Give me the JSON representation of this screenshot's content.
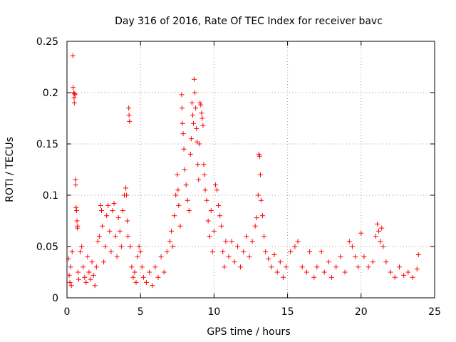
{
  "chart_data": {
    "type": "scatter",
    "title": "Day 316 of 2016, Rate Of TEC Index for receiver bavc",
    "xlabel": "GPS time / hours",
    "ylabel": "ROTI / TECUs",
    "xlim": [
      0,
      25
    ],
    "ylim": [
      0,
      0.25
    ],
    "xticks": [
      0,
      5,
      10,
      15,
      20,
      25
    ],
    "yticks": [
      0,
      0.05,
      0.1,
      0.15,
      0.2,
      0.25
    ],
    "xtick_labels": [
      "0",
      "5",
      "10",
      "15",
      "20",
      "25"
    ],
    "ytick_labels": [
      "0",
      "0.05",
      "0.1",
      "0.15",
      "0.2",
      "0.25"
    ],
    "grid": true,
    "marker": "+",
    "marker_color": "#ff0000",
    "series": [
      {
        "name": "ROTI",
        "points": [
          [
            0.1,
            0.038
          ],
          [
            0.15,
            0.022
          ],
          [
            0.2,
            0.015
          ],
          [
            0.25,
            0.03
          ],
          [
            0.3,
            0.012
          ],
          [
            0.35,
            0.045
          ],
          [
            0.4,
            0.236
          ],
          [
            0.42,
            0.205
          ],
          [
            0.45,
            0.2
          ],
          [
            0.48,
            0.195
          ],
          [
            0.5,
            0.19
          ],
          [
            0.52,
            0.199
          ],
          [
            0.55,
            0.198
          ],
          [
            0.58,
            0.115
          ],
          [
            0.6,
            0.11
          ],
          [
            0.62,
            0.088
          ],
          [
            0.65,
            0.085
          ],
          [
            0.68,
            0.075
          ],
          [
            0.7,
            0.068
          ],
          [
            0.72,
            0.07
          ],
          [
            0.75,
            0.025
          ],
          [
            0.8,
            0.018
          ],
          [
            0.9,
            0.045
          ],
          [
            1.0,
            0.05
          ],
          [
            1.1,
            0.03
          ],
          [
            1.2,
            0.02
          ],
          [
            1.3,
            0.015
          ],
          [
            1.4,
            0.04
          ],
          [
            1.5,
            0.025
          ],
          [
            1.6,
            0.018
          ],
          [
            1.7,
            0.035
          ],
          [
            1.8,
            0.022
          ],
          [
            1.9,
            0.012
          ],
          [
            2.0,
            0.03
          ],
          [
            2.1,
            0.055
          ],
          [
            2.2,
            0.06
          ],
          [
            2.3,
            0.09
          ],
          [
            2.35,
            0.085
          ],
          [
            2.4,
            0.07
          ],
          [
            2.5,
            0.035
          ],
          [
            2.6,
            0.05
          ],
          [
            2.7,
            0.08
          ],
          [
            2.8,
            0.09
          ],
          [
            2.9,
            0.065
          ],
          [
            3.0,
            0.045
          ],
          [
            3.1,
            0.085
          ],
          [
            3.2,
            0.092
          ],
          [
            3.3,
            0.06
          ],
          [
            3.4,
            0.04
          ],
          [
            3.5,
            0.078
          ],
          [
            3.6,
            0.065
          ],
          [
            3.7,
            0.05
          ],
          [
            3.8,
            0.085
          ],
          [
            3.9,
            0.1
          ],
          [
            4.0,
            0.107
          ],
          [
            4.05,
            0.1
          ],
          [
            4.1,
            0.075
          ],
          [
            4.15,
            0.06
          ],
          [
            4.2,
            0.185
          ],
          [
            4.22,
            0.178
          ],
          [
            4.25,
            0.172
          ],
          [
            4.3,
            0.05
          ],
          [
            4.4,
            0.03
          ],
          [
            4.5,
            0.02
          ],
          [
            4.6,
            0.025
          ],
          [
            4.7,
            0.015
          ],
          [
            4.8,
            0.04
          ],
          [
            4.9,
            0.05
          ],
          [
            5.0,
            0.045
          ],
          [
            5.1,
            0.03
          ],
          [
            5.2,
            0.02
          ],
          [
            5.4,
            0.015
          ],
          [
            5.6,
            0.025
          ],
          [
            5.8,
            0.012
          ],
          [
            6.0,
            0.03
          ],
          [
            6.2,
            0.02
          ],
          [
            6.4,
            0.04
          ],
          [
            6.6,
            0.025
          ],
          [
            6.8,
            0.045
          ],
          [
            7.0,
            0.055
          ],
          [
            7.1,
            0.065
          ],
          [
            7.2,
            0.05
          ],
          [
            7.3,
            0.08
          ],
          [
            7.4,
            0.1
          ],
          [
            7.5,
            0.12
          ],
          [
            7.55,
            0.105
          ],
          [
            7.6,
            0.09
          ],
          [
            7.7,
            0.07
          ],
          [
            7.8,
            0.198
          ],
          [
            7.82,
            0.185
          ],
          [
            7.85,
            0.17
          ],
          [
            7.9,
            0.16
          ],
          [
            7.95,
            0.145
          ],
          [
            8.0,
            0.125
          ],
          [
            8.1,
            0.11
          ],
          [
            8.2,
            0.095
          ],
          [
            8.3,
            0.085
          ],
          [
            8.4,
            0.14
          ],
          [
            8.45,
            0.155
          ],
          [
            8.5,
            0.19
          ],
          [
            8.55,
            0.178
          ],
          [
            8.6,
            0.17
          ],
          [
            8.65,
            0.213
          ],
          [
            8.7,
            0.2
          ],
          [
            8.75,
            0.185
          ],
          [
            8.8,
            0.165
          ],
          [
            8.85,
            0.152
          ],
          [
            8.9,
            0.13
          ],
          [
            8.95,
            0.115
          ],
          [
            9.0,
            0.15
          ],
          [
            9.05,
            0.19
          ],
          [
            9.1,
            0.188
          ],
          [
            9.15,
            0.18
          ],
          [
            9.2,
            0.175
          ],
          [
            9.25,
            0.168
          ],
          [
            9.3,
            0.13
          ],
          [
            9.35,
            0.12
          ],
          [
            9.4,
            0.105
          ],
          [
            9.5,
            0.095
          ],
          [
            9.6,
            0.075
          ],
          [
            9.7,
            0.06
          ],
          [
            9.8,
            0.085
          ],
          [
            9.9,
            0.045
          ],
          [
            10.0,
            0.065
          ],
          [
            10.1,
            0.11
          ],
          [
            10.2,
            0.105
          ],
          [
            10.3,
            0.09
          ],
          [
            10.4,
            0.08
          ],
          [
            10.5,
            0.07
          ],
          [
            10.6,
            0.045
          ],
          [
            10.7,
            0.03
          ],
          [
            10.8,
            0.055
          ],
          [
            11.0,
            0.04
          ],
          [
            11.2,
            0.055
          ],
          [
            11.4,
            0.035
          ],
          [
            11.6,
            0.05
          ],
          [
            11.8,
            0.03
          ],
          [
            12.0,
            0.045
          ],
          [
            12.2,
            0.06
          ],
          [
            12.4,
            0.04
          ],
          [
            12.6,
            0.055
          ],
          [
            12.8,
            0.07
          ],
          [
            12.9,
            0.078
          ],
          [
            13.0,
            0.1
          ],
          [
            13.05,
            0.14
          ],
          [
            13.1,
            0.138
          ],
          [
            13.15,
            0.12
          ],
          [
            13.2,
            0.095
          ],
          [
            13.3,
            0.08
          ],
          [
            13.4,
            0.06
          ],
          [
            13.5,
            0.045
          ],
          [
            13.7,
            0.038
          ],
          [
            13.9,
            0.03
          ],
          [
            14.1,
            0.042
          ],
          [
            14.3,
            0.025
          ],
          [
            14.5,
            0.035
          ],
          [
            14.7,
            0.02
          ],
          [
            14.9,
            0.03
          ],
          [
            15.2,
            0.045
          ],
          [
            15.5,
            0.05
          ],
          [
            15.7,
            0.055
          ],
          [
            16.0,
            0.03
          ],
          [
            16.3,
            0.025
          ],
          [
            16.5,
            0.045
          ],
          [
            16.8,
            0.02
          ],
          [
            17.0,
            0.03
          ],
          [
            17.3,
            0.045
          ],
          [
            17.5,
            0.025
          ],
          [
            17.8,
            0.035
          ],
          [
            18.0,
            0.02
          ],
          [
            18.3,
            0.03
          ],
          [
            18.6,
            0.04
          ],
          [
            18.9,
            0.025
          ],
          [
            19.2,
            0.055
          ],
          [
            19.4,
            0.05
          ],
          [
            19.6,
            0.04
          ],
          [
            19.8,
            0.03
          ],
          [
            20.0,
            0.063
          ],
          [
            20.2,
            0.04
          ],
          [
            20.5,
            0.03
          ],
          [
            20.8,
            0.035
          ],
          [
            21.0,
            0.06
          ],
          [
            21.1,
            0.072
          ],
          [
            21.2,
            0.065
          ],
          [
            21.3,
            0.055
          ],
          [
            21.4,
            0.068
          ],
          [
            21.5,
            0.05
          ],
          [
            21.7,
            0.035
          ],
          [
            22.0,
            0.025
          ],
          [
            22.3,
            0.02
          ],
          [
            22.6,
            0.03
          ],
          [
            22.9,
            0.022
          ],
          [
            23.2,
            0.025
          ],
          [
            23.5,
            0.02
          ],
          [
            23.8,
            0.028
          ],
          [
            23.9,
            0.042
          ]
        ]
      }
    ]
  }
}
